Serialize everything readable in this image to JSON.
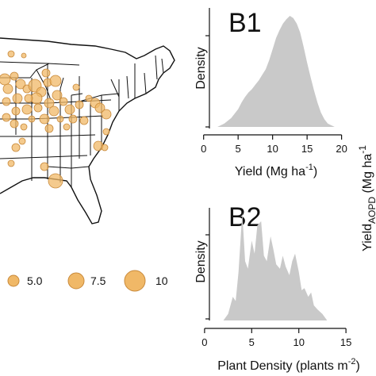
{
  "colors": {
    "bubble_fill": "#F0B867",
    "bubble_stroke": "#C8893A",
    "density_fill": "#C9C9C9",
    "axis": "#111111",
    "map_line": "#111111"
  },
  "chart_data": [
    {
      "type": "map-bubble",
      "panel": "map",
      "legend": {
        "entries": [
          {
            "label": "5.0",
            "value": 5.0
          },
          {
            "label": "7.5",
            "value": 7.5
          },
          {
            "label": "10",
            "value": 10
          }
        ]
      }
    },
    {
      "type": "area",
      "panel_label": "B1",
      "xlabel_main": "Yield (Mg ha",
      "xlabel_sup": "-1",
      "xlabel_end": ")",
      "ylabel": "Density",
      "xlim": [
        -1,
        22
      ],
      "xticks": [
        0,
        5,
        10,
        15,
        20
      ],
      "x": [
        2,
        3,
        4,
        5,
        5.5,
        6,
        6.5,
        7,
        7.5,
        8,
        8.5,
        9,
        9.5,
        10,
        10.5,
        11,
        11.5,
        12,
        12.5,
        13,
        13.5,
        14,
        14.5,
        15,
        15.5,
        16,
        16.5,
        17,
        17.5,
        18,
        19
      ],
      "y": [
        0,
        0.03,
        0.08,
        0.16,
        0.22,
        0.27,
        0.31,
        0.34,
        0.38,
        0.42,
        0.47,
        0.52,
        0.6,
        0.7,
        0.8,
        0.87,
        0.93,
        0.97,
        1.0,
        0.98,
        0.93,
        0.85,
        0.72,
        0.58,
        0.45,
        0.33,
        0.22,
        0.13,
        0.07,
        0.03,
        0
      ]
    },
    {
      "type": "area",
      "panel_label": "B2",
      "xlabel_main": "Plant Density (plants m",
      "xlabel_sup": "-2",
      "xlabel_end": ")",
      "ylabel": "Density",
      "xlim": [
        -1,
        16
      ],
      "xticks": [
        0,
        5,
        10,
        15
      ],
      "x": [
        2,
        2.5,
        3,
        3.3,
        3.6,
        4,
        4.3,
        4.6,
        5,
        5.3,
        5.6,
        6,
        6.3,
        6.6,
        7,
        7.3,
        7.6,
        8,
        8.3,
        8.6,
        9,
        9.3,
        9.6,
        10,
        10.3,
        10.6,
        11,
        11.3,
        11.6,
        12,
        12.5,
        13
      ],
      "y": [
        0,
        0.06,
        0.22,
        0.18,
        0.45,
        1.0,
        0.55,
        0.48,
        0.74,
        0.62,
        0.88,
        0.92,
        0.6,
        0.55,
        0.78,
        0.66,
        0.52,
        0.48,
        0.6,
        0.5,
        0.42,
        0.55,
        0.62,
        0.45,
        0.28,
        0.3,
        0.22,
        0.26,
        0.14,
        0.1,
        0.06,
        0
      ]
    }
  ],
  "right_axis_label": {
    "main": "Yield",
    "sub": "AOPD",
    "end": " (Mg ha",
    "sup": "-1"
  }
}
